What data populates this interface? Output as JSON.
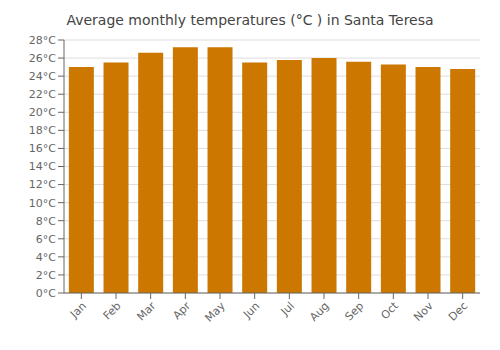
{
  "chart_data": {
    "type": "bar",
    "title": "Average monthly temperatures (°C ) in Santa Teresa",
    "categories": [
      "Jan",
      "Feb",
      "Mar",
      "Apr",
      "May",
      "Jun",
      "Jul",
      "Aug",
      "Sep",
      "Oct",
      "Nov",
      "Dec"
    ],
    "values": [
      25.0,
      25.5,
      26.6,
      27.2,
      27.2,
      25.5,
      25.8,
      26.0,
      25.6,
      25.3,
      25.0,
      24.8
    ],
    "color": "#CC7700",
    "ylim": [
      0,
      28
    ],
    "yticks": [
      {
        "value": 0,
        "label": "0°C"
      },
      {
        "value": 2,
        "label": "2°C"
      },
      {
        "value": 4,
        "label": "4°C"
      },
      {
        "value": 6,
        "label": "6°C"
      },
      {
        "value": 8,
        "label": "8°C"
      },
      {
        "value": 10,
        "label": "10°C"
      },
      {
        "value": 12,
        "label": "12°C"
      },
      {
        "value": 14,
        "label": "14°C"
      },
      {
        "value": 16,
        "label": "16°C"
      },
      {
        "value": 18,
        "label": "18°C"
      },
      {
        "value": 20,
        "label": "20°C"
      },
      {
        "value": 22,
        "label": "22°C"
      },
      {
        "value": 24,
        "label": "24°C"
      },
      {
        "value": 26,
        "label": "26°C"
      },
      {
        "value": 28,
        "label": "28°C"
      }
    ],
    "grid": true
  }
}
